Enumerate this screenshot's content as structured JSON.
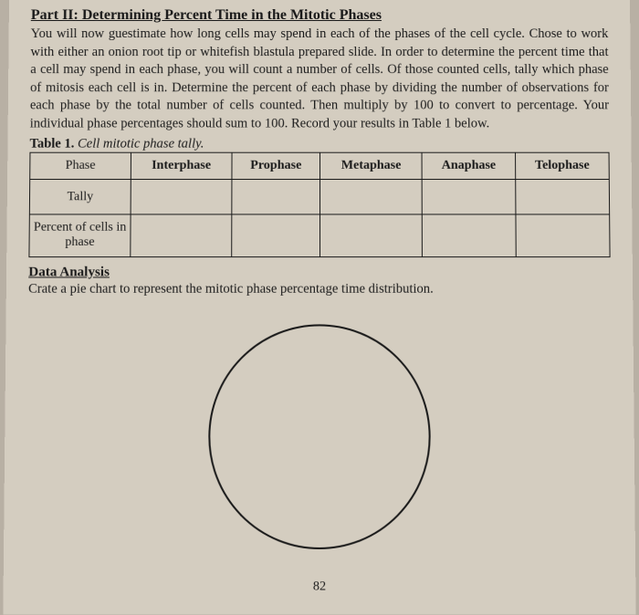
{
  "heading": "Part II: Determining Percent Time in the Mitotic Phases",
  "paragraph": "You will now guestimate how long cells may spend in each of the phases of the cell cycle. Chose to work with either an onion root tip or whitefish blastula prepared slide. In order to determine the percent time that a cell may spend in each phase, you will count a number of cells. Of those counted cells, tally which phase of mitosis each cell is in. Determine the percent of each phase by dividing the number of observations for each phase by the total number of cells counted. Then multiply by 100 to convert to percentage. Your individual phase percentages should sum to 100. Record your results in Table 1 below.",
  "table_caption_bold": "Table 1.",
  "table_caption_italic": "Cell mitotic phase tally.",
  "table": {
    "headers": [
      "Phase",
      "Interphase",
      "Prophase",
      "Metaphase",
      "Anaphase",
      "Telophase"
    ],
    "rows": [
      {
        "label": "Tally"
      },
      {
        "label": "Percent of cells in phase"
      }
    ]
  },
  "data_analysis_heading": "Data Analysis",
  "data_analysis_text": "Crate a pie chart to represent the mitotic phase percentage time distribution.",
  "page_number": "82",
  "styling": {
    "page_bg": "#d4cdc0",
    "outer_bg": "#b8b0a4",
    "text_color": "#1a1a1a",
    "border_color": "#1a1a1a",
    "body_fontsize": 14.5,
    "heading_fontsize": 16,
    "circle_diameter": 240,
    "circle_border_width": 2
  }
}
